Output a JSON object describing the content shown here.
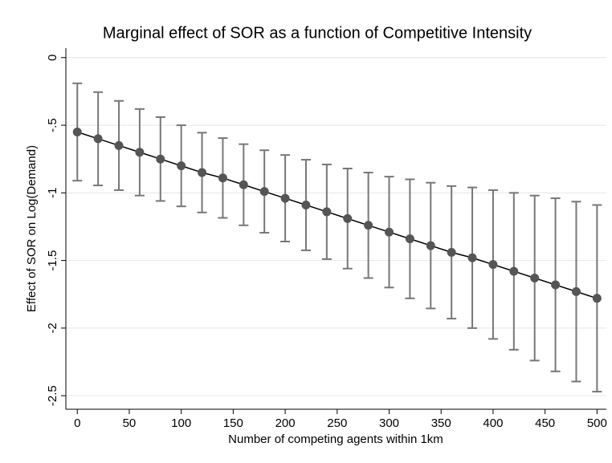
{
  "chart_data": {
    "type": "errorbar_line",
    "title": "Marginal effect of SOR as a function of Competitive Intensity",
    "x_label": "Number of competing agents within 1km",
    "y_label": "Effect of SOR on Log(Demand)",
    "x": [
      0,
      20,
      40,
      60,
      80,
      100,
      120,
      140,
      160,
      180,
      200,
      220,
      240,
      260,
      280,
      300,
      320,
      340,
      360,
      380,
      400,
      420,
      440,
      460,
      480,
      500
    ],
    "values": [
      -0.55,
      -0.6,
      -0.65,
      -0.7,
      -0.75,
      -0.8,
      -0.85,
      -0.89,
      -0.94,
      -0.99,
      -1.04,
      -1.09,
      -1.14,
      -1.19,
      -1.24,
      -1.29,
      -1.34,
      -1.39,
      -1.44,
      -1.48,
      -1.53,
      -1.58,
      -1.63,
      -1.68,
      -1.73,
      -1.78
    ],
    "error": [
      0.36,
      0.345,
      0.33,
      0.32,
      0.31,
      0.3,
      0.295,
      0.295,
      0.3,
      0.305,
      0.32,
      0.335,
      0.35,
      0.37,
      0.39,
      0.41,
      0.44,
      0.465,
      0.49,
      0.52,
      0.55,
      0.58,
      0.61,
      0.64,
      0.665,
      0.69
    ],
    "color": "#555555",
    "line_color": "#000000",
    "errorbar_color": "#777777",
    "xlim": [
      -11,
      509
    ],
    "ylim": [
      -2.6,
      0.07
    ],
    "xticks": [
      0,
      50,
      100,
      150,
      200,
      250,
      300,
      350,
      400,
      450,
      500
    ],
    "yticks": [
      0,
      {
        "value": -0.5,
        "label": "-.5"
      },
      -1,
      {
        "value": -1.5,
        "label": "-1.5"
      },
      -2,
      {
        "value": -2.5,
        "label": "-2.5"
      }
    ],
    "grid": true
  }
}
